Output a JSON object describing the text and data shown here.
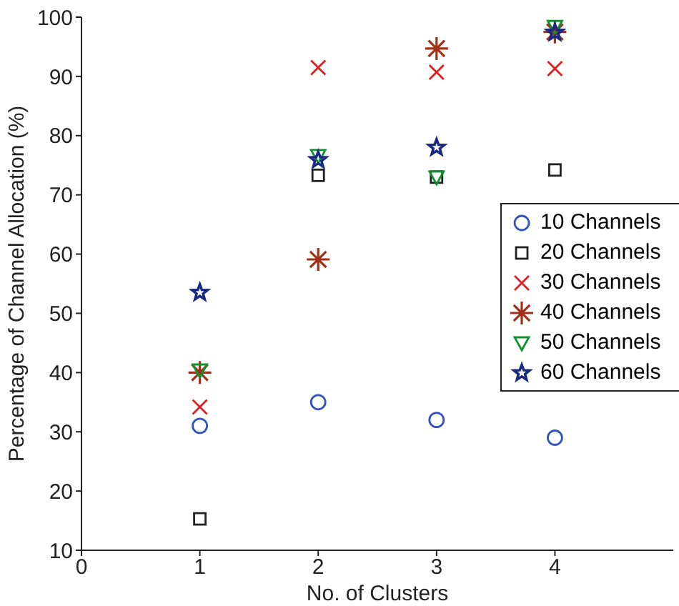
{
  "chart_data": {
    "type": "scatter",
    "xlabel": "No. of Clusters",
    "ylabel": "Percentage of Channel Allocation (%)",
    "x": [
      1,
      2,
      3,
      4
    ],
    "xlim": [
      0,
      5
    ],
    "xticks": [
      0,
      1,
      2,
      3,
      4
    ],
    "ylim": [
      10,
      100
    ],
    "yticks": [
      10,
      20,
      30,
      40,
      50,
      60,
      70,
      80,
      90,
      100
    ],
    "grid": false,
    "legend": "right",
    "series": [
      {
        "name": "10 Channels",
        "color": "#3355bb",
        "marker": "circle",
        "values": [
          31,
          35,
          32,
          29
        ]
      },
      {
        "name": "20 Channels",
        "color": "#222222",
        "marker": "square",
        "values": [
          15.3,
          73.3,
          73,
          74.2
        ]
      },
      {
        "name": "30 Channels",
        "color": "#e02020",
        "marker": "x",
        "values": [
          34.2,
          91.5,
          90.7,
          91.3
        ]
      },
      {
        "name": "40 Channels",
        "color": "#a03018",
        "marker": "cross",
        "values": [
          40,
          59.1,
          94.7,
          97.5
        ]
      },
      {
        "name": "50 Channels",
        "color": "#109030",
        "marker": "triangle-down",
        "values": [
          40.4,
          76.6,
          73,
          98.4
        ]
      },
      {
        "name": "60 Channels",
        "color": "#1a2a80",
        "marker": "star",
        "values": [
          53.5,
          75.9,
          78,
          97.4
        ]
      }
    ]
  }
}
